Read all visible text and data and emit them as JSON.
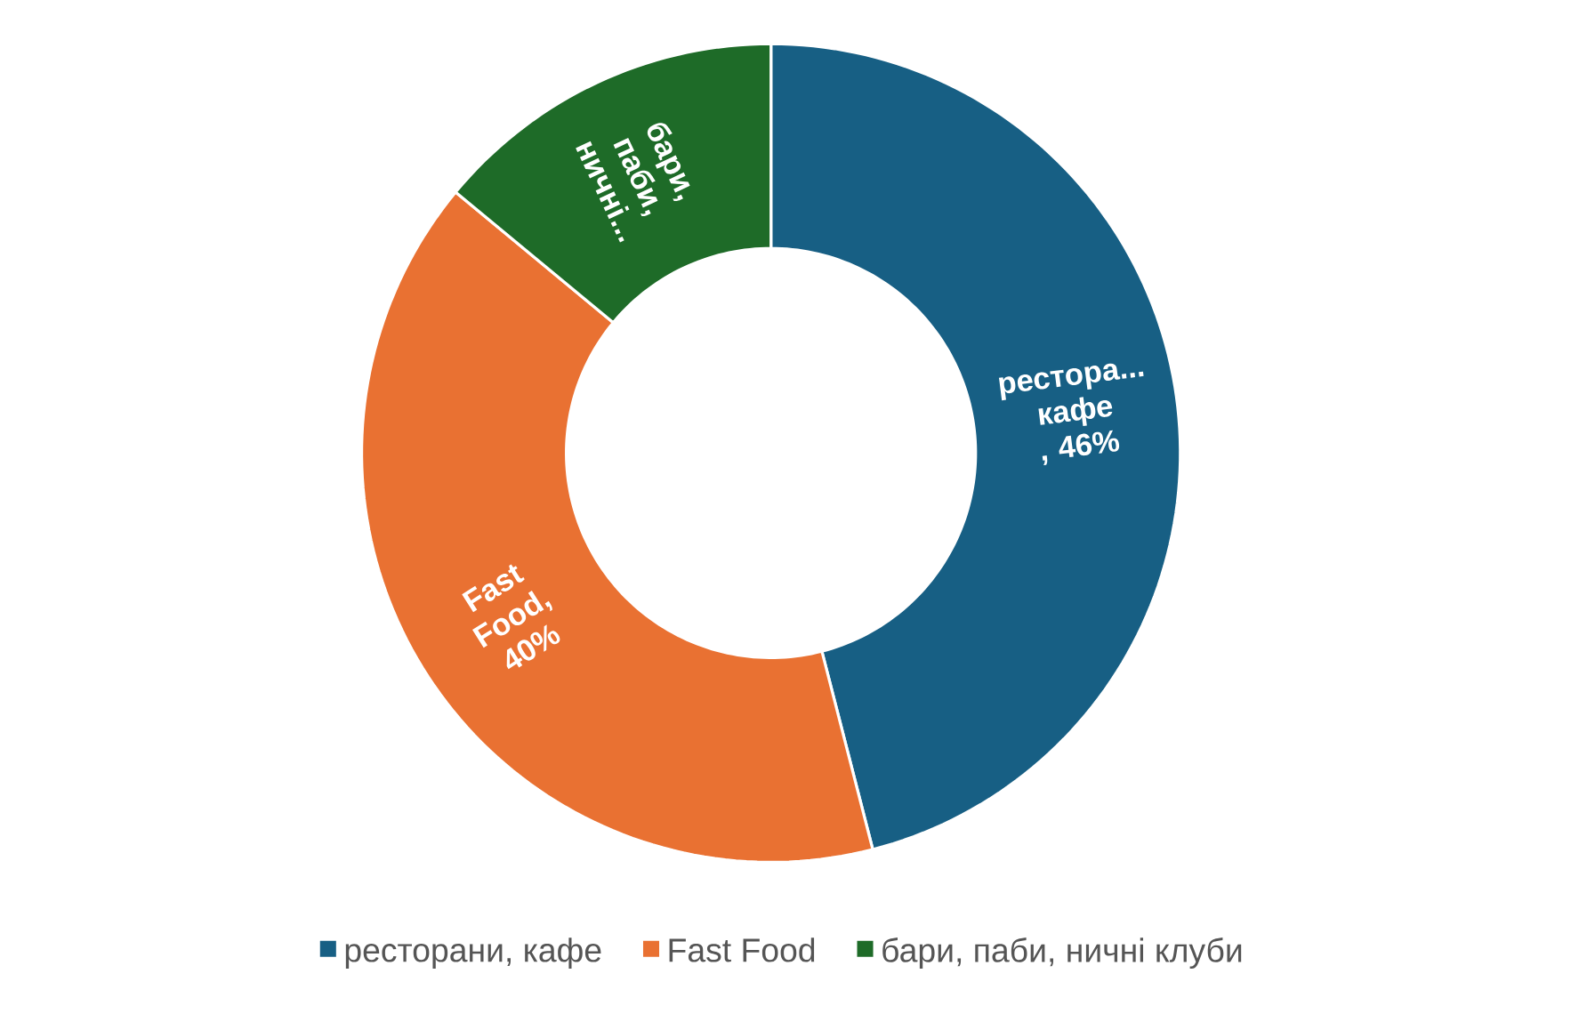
{
  "chart_data": {
    "type": "donut",
    "categories": [
      "ресторани, кафе",
      "Fast Food",
      "бари, паби, ничні клуби"
    ],
    "values": [
      46,
      40,
      14
    ],
    "colors": [
      "#175f84",
      "#e97132",
      "#1e6b28"
    ],
    "value_labels": [
      "рестора... кафе , 46%",
      "Fast Food, 40%",
      "бари, паби, ничні..."
    ],
    "legend": "bottom"
  }
}
